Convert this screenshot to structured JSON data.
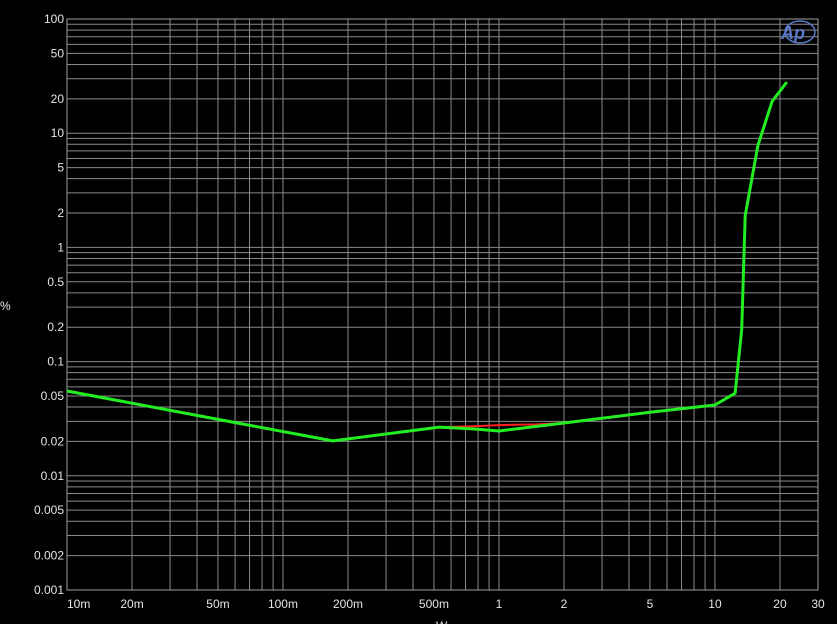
{
  "chart_data": {
    "type": "line",
    "title": "",
    "xlabel": "W",
    "ylabel": "%",
    "x_scale": "log",
    "y_scale": "log",
    "xlim": [
      0.01,
      30
    ],
    "ylim": [
      0.001,
      100
    ],
    "grid": true,
    "x_ticks": [
      {
        "v": 0.01,
        "label": "10m"
      },
      {
        "v": 0.02,
        "label": "20m"
      },
      {
        "v": 0.05,
        "label": "50m"
      },
      {
        "v": 0.1,
        "label": "100m"
      },
      {
        "v": 0.2,
        "label": "200m"
      },
      {
        "v": 0.5,
        "label": "500m"
      },
      {
        "v": 1,
        "label": "1"
      },
      {
        "v": 2,
        "label": "2"
      },
      {
        "v": 5,
        "label": "5"
      },
      {
        "v": 10,
        "label": "10"
      },
      {
        "v": 20,
        "label": "20"
      },
      {
        "v": 30,
        "label": "30"
      }
    ],
    "y_ticks": [
      {
        "v": 100,
        "label": "100"
      },
      {
        "v": 50,
        "label": "50"
      },
      {
        "v": 20,
        "label": "20"
      },
      {
        "v": 10,
        "label": "10"
      },
      {
        "v": 5,
        "label": "5"
      },
      {
        "v": 2,
        "label": "2"
      },
      {
        "v": 1,
        "label": "1"
      },
      {
        "v": 0.5,
        "label": "0.5"
      },
      {
        "v": 0.2,
        "label": "0.2"
      },
      {
        "v": 0.1,
        "label": "0.1"
      },
      {
        "v": 0.05,
        "label": "0.05"
      },
      {
        "v": 0.02,
        "label": "0.02"
      },
      {
        "v": 0.01,
        "label": "0.01"
      },
      {
        "v": 0.005,
        "label": "0.005"
      },
      {
        "v": 0.002,
        "label": "0.002"
      },
      {
        "v": 0.001,
        "label": "0.001"
      }
    ],
    "series": [
      {
        "color": "#ff2020",
        "points": [
          [
            0.01,
            0.0553
          ],
          [
            0.17,
            0.0202
          ],
          [
            0.53,
            0.0267
          ],
          [
            0.77,
            0.0272
          ],
          [
            1.0,
            0.0278
          ],
          [
            1.5,
            0.0282
          ],
          [
            2,
            0.029
          ],
          [
            5,
            0.036
          ],
          [
            10,
            0.0417
          ],
          [
            12.4,
            0.0529
          ],
          [
            13.3,
            0.19
          ],
          [
            13.8,
            1.9
          ],
          [
            15.8,
            7.8
          ],
          [
            18.4,
            19
          ],
          [
            21.5,
            28
          ]
        ]
      },
      {
        "color": "#22ee22",
        "points": [
          [
            0.01,
            0.0553
          ],
          [
            0.17,
            0.0202
          ],
          [
            0.53,
            0.0267
          ],
          [
            0.77,
            0.0257
          ],
          [
            1.0,
            0.0247
          ],
          [
            2,
            0.029
          ],
          [
            5,
            0.036
          ],
          [
            10,
            0.0417
          ],
          [
            12.4,
            0.0529
          ],
          [
            13.3,
            0.19
          ],
          [
            13.8,
            1.9
          ],
          [
            15.8,
            7.8
          ],
          [
            18.4,
            19
          ],
          [
            21.5,
            28
          ]
        ]
      }
    ]
  },
  "logo": {
    "text": "Ap",
    "color": "#5a78c8"
  }
}
